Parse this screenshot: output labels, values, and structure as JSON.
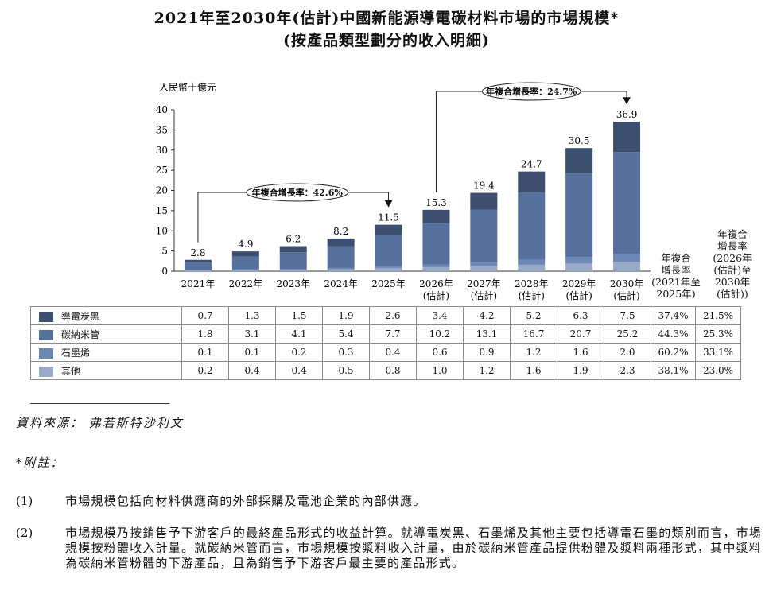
{
  "title_line1": "2021年至2030年(估計)中國新能源導電碳材料市場的市場規模*",
  "title_line2": "(按產品類型劃分的收入明細)",
  "colors": {
    "導電炭黑": "#3d4f6f",
    "碳納米管": "#56709d",
    "石墨烯": "#6b87b5",
    "其他": "#98aac8"
  },
  "chart_data": {
    "type": "bar",
    "stacked": true,
    "ylabel": "人民幣十億元",
    "ylim": [
      0,
      40
    ],
    "yticks": [
      0,
      5,
      10,
      15,
      20,
      25,
      30,
      35,
      40
    ],
    "categories": [
      "2021年",
      "2022年",
      "2023年",
      "2024年",
      "2025年",
      "2026年\n(估計)",
      "2027年\n(估計)",
      "2028年\n(估計)",
      "2029年\n(估計)",
      "2030年\n(估計)"
    ],
    "series": [
      {
        "name": "其他",
        "values": [
          0.2,
          0.4,
          0.4,
          0.5,
          0.8,
          1.0,
          1.2,
          1.6,
          1.9,
          2.3
        ]
      },
      {
        "name": "石墨烯",
        "values": [
          0.1,
          0.1,
          0.2,
          0.3,
          0.4,
          0.6,
          0.9,
          1.2,
          1.6,
          2.0
        ]
      },
      {
        "name": "碳納米管",
        "values": [
          1.8,
          3.1,
          4.1,
          5.4,
          7.7,
          10.2,
          13.1,
          16.7,
          20.7,
          25.2
        ]
      },
      {
        "name": "導電炭黑",
        "values": [
          0.7,
          1.3,
          1.5,
          1.9,
          2.6,
          3.4,
          4.2,
          5.2,
          6.3,
          7.5
        ]
      }
    ],
    "totals": [
      "2.8",
      "4.9",
      "6.2",
      "8.2",
      "11.5",
      "15.3",
      "19.4",
      "24.7",
      "30.5",
      "36.9"
    ],
    "cagr_annotations": [
      {
        "label": "年複合增長率：42.6%",
        "from": 0,
        "to": 4
      },
      {
        "label": "年複合增長率：24.7%",
        "from": 5,
        "to": 9
      }
    ]
  },
  "table": {
    "cagr_header_1": "年複合\n增長率\n(2021年至\n2025年)",
    "cagr_header_2": "年複合\n增長率\n(2026年\n(估計)至\n2030年\n(估計))",
    "rows": [
      {
        "label": "導電炭黑",
        "values": [
          "0.7",
          "1.3",
          "1.5",
          "1.9",
          "2.6",
          "3.4",
          "4.2",
          "5.2",
          "6.3",
          "7.5"
        ],
        "cagr1": "37.4%",
        "cagr2": "21.5%"
      },
      {
        "label": "碳納米管",
        "values": [
          "1.8",
          "3.1",
          "4.1",
          "5.4",
          "7.7",
          "10.2",
          "13.1",
          "16.7",
          "20.7",
          "25.2"
        ],
        "cagr1": "44.3%",
        "cagr2": "25.3%"
      },
      {
        "label": "石墨烯",
        "values": [
          "0.1",
          "0.1",
          "0.2",
          "0.3",
          "0.4",
          "0.6",
          "0.9",
          "1.2",
          "1.6",
          "2.0"
        ],
        "cagr1": "60.2%",
        "cagr2": "33.1%"
      },
      {
        "label": "其他",
        "values": [
          "0.2",
          "0.4",
          "0.4",
          "0.5",
          "0.8",
          "1.0",
          "1.2",
          "1.6",
          "1.9",
          "2.3"
        ],
        "cagr1": "38.1%",
        "cagr2": "23.0%"
      }
    ]
  },
  "notes": {
    "source": "資料來源： 弗若斯特沙利文",
    "footnote_label": "*附註：",
    "items": [
      {
        "num": "(1)",
        "text": "市場規模包括向材料供應商的外部採購及電池企業的內部供應。"
      },
      {
        "num": "(2)",
        "text": "市場規模乃按銷售予下游客戶的最終產品形式的收益計算。就導電炭黑、石墨烯及其他主要包括導電石墨的類別而言，市場規模按粉體收入計量。就碳納米管而言，市場規模按漿料收入計量，由於碳納米管產品提供粉體及漿料兩種形式，其中漿料為碳納米管粉體的下游產品，且為銷售予下游客戶最主要的產品形式。"
      }
    ]
  }
}
